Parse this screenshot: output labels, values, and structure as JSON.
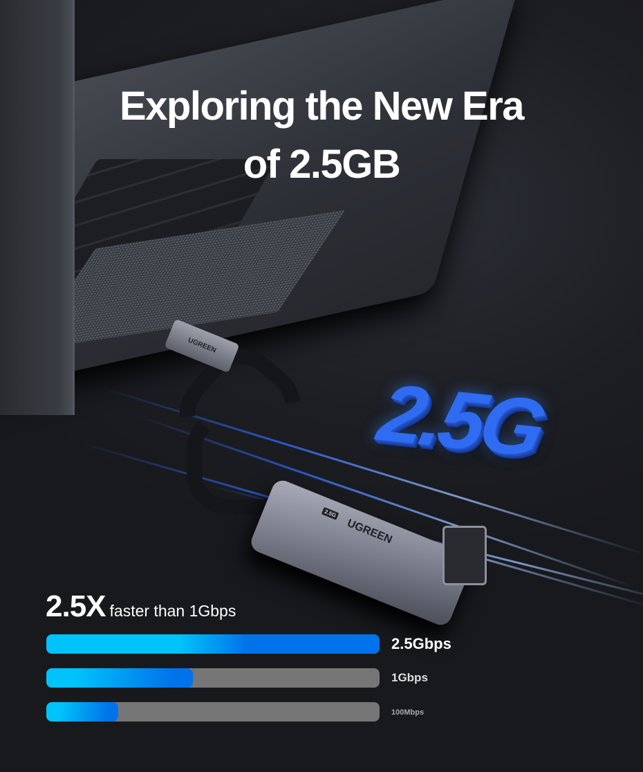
{
  "hero": {
    "title_line1": "Exploring the New Era",
    "title_line2": "of 2.5GB",
    "badge_3d_text": "2.5G"
  },
  "product": {
    "brand": "UGREEN",
    "plug_brand": "UGREEN",
    "speed_tag": "2.5G"
  },
  "speed_comparison": {
    "multiplier": "2.5X",
    "caption": "faster than 1Gbps",
    "bars": [
      {
        "label": "2.5Gbps",
        "fill_fraction": 1.0,
        "gradient": [
          "#00c3fa",
          "#0073ea"
        ]
      },
      {
        "label": "1Gbps",
        "fill_fraction": 0.44,
        "gradient": [
          "#00c3fa",
          "#0073ea"
        ]
      },
      {
        "label": "100Mbps",
        "fill_fraction": 0.216,
        "gradient": [
          "#00c3fa",
          "#0073ea"
        ]
      }
    ],
    "track_color": "#767676"
  }
}
